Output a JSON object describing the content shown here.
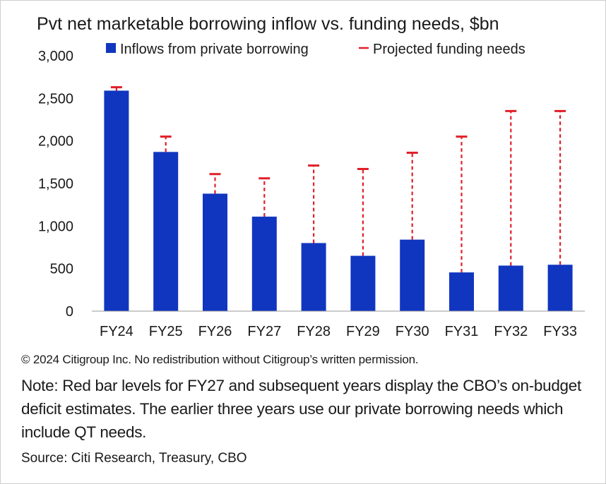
{
  "chart_data": {
    "type": "bar",
    "title": "Pvt net marketable borrowing inflow vs. funding needs, $bn",
    "categories": [
      "FY24",
      "FY25",
      "FY26",
      "FY27",
      "FY28",
      "FY29",
      "FY30",
      "FY31",
      "FY32",
      "FY33"
    ],
    "series": [
      {
        "name": "Inflows from private borrowing",
        "type": "bar",
        "color": "#1036c0",
        "values": [
          2590,
          1870,
          1380,
          1110,
          800,
          650,
          840,
          455,
          535,
          545
        ]
      },
      {
        "name": "Projected funding needs",
        "type": "error-line",
        "color": "#e0202a",
        "values": [
          2630,
          2050,
          1610,
          1560,
          1710,
          1670,
          1860,
          2050,
          2350,
          2350
        ]
      }
    ],
    "ylim": [
      0,
      3000
    ],
    "yticks": [
      0,
      500,
      1000,
      1500,
      2000,
      2500,
      3000
    ],
    "ytick_labels": [
      "0",
      "500",
      "1,000",
      "1,500",
      "2,000",
      "2,500",
      "3,000"
    ],
    "xlabel": "",
    "ylabel": "",
    "grid": false,
    "legend": "top"
  },
  "footer": {
    "copyright": "© 2024 Citigroup Inc. No redistribution without Citigroup’s written permission.",
    "note": "Note: Red bar levels for FY27 and subsequent years display the CBO’s on-budget deficit estimates. The earlier three years use our private borrowing needs which include QT needs.",
    "source": "Source: Citi Research, Treasury, CBO"
  }
}
